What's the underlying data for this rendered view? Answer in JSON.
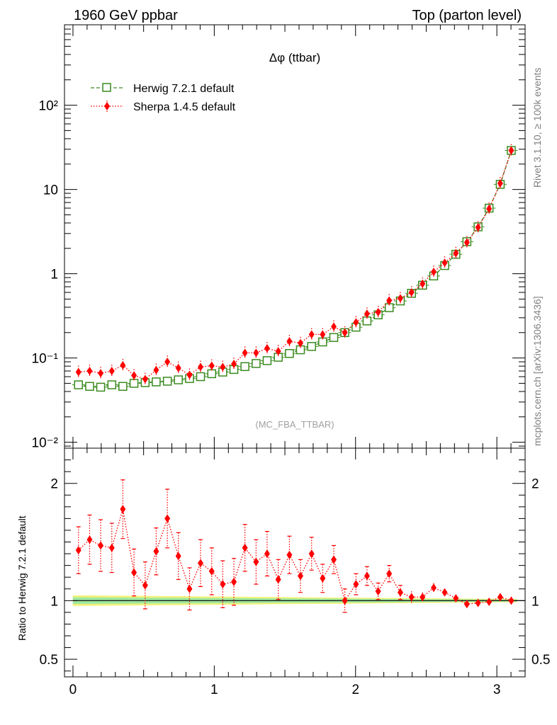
{
  "header": {
    "left_title": "1960 GeV ppbar",
    "right_title": "Top (parton level)"
  },
  "side_labels": {
    "rivet": "Rivet 3.1.10, ≥ 100k events",
    "mcplots": "mcplots.cern.ch [arXiv:1306.3436]"
  },
  "plot_title": "Δφ (ttbar)",
  "watermark": "(MC_FBA_TTBAR)",
  "ratio_ylabel": "Ratio to Herwig 7.2.1 default",
  "legend": [
    {
      "label": "Herwig 7.2.1 default",
      "color": "#3a8a1e"
    },
    {
      "label": "Sherpa 1.4.5 default",
      "color": "#ff0000"
    }
  ],
  "colors": {
    "herwig": "#3a8a1e",
    "sherpa": "#ff0000",
    "band_outer": "#f2f27a",
    "band_inner": "#9fe8a0"
  },
  "chart_data": [
    {
      "type": "scatter",
      "panel": "main",
      "yscale": "log",
      "xlim": [
        -0.06,
        3.2
      ],
      "ylim": [
        0.0085,
        900
      ],
      "ytick_labels": [
        "10⁻²",
        "10⁻¹",
        "1",
        "10",
        "10²"
      ],
      "x": [
        0.039,
        0.118,
        0.196,
        0.275,
        0.353,
        0.432,
        0.511,
        0.589,
        0.668,
        0.746,
        0.825,
        0.903,
        0.982,
        1.06,
        1.139,
        1.217,
        1.296,
        1.374,
        1.453,
        1.532,
        1.61,
        1.689,
        1.767,
        1.846,
        1.924,
        2.003,
        2.081,
        2.16,
        2.238,
        2.317,
        2.396,
        2.474,
        2.553,
        2.631,
        2.71,
        2.788,
        2.867,
        2.945,
        3.024,
        3.102
      ],
      "series": [
        {
          "name": "Herwig 7.2.1 default",
          "values": [
            0.048,
            0.046,
            0.045,
            0.048,
            0.046,
            0.05,
            0.051,
            0.052,
            0.053,
            0.055,
            0.057,
            0.06,
            0.065,
            0.068,
            0.073,
            0.079,
            0.086,
            0.093,
            0.102,
            0.113,
            0.125,
            0.137,
            0.155,
            0.175,
            0.2,
            0.232,
            0.275,
            0.325,
            0.395,
            0.475,
            0.585,
            0.73,
            0.94,
            1.25,
            1.7,
            2.4,
            3.6,
            6.0,
            11.5,
            29.0
          ]
        },
        {
          "name": "Sherpa 1.4.5 default",
          "values": [
            0.068,
            0.07,
            0.066,
            0.07,
            0.082,
            0.062,
            0.056,
            0.072,
            0.09,
            0.076,
            0.063,
            0.078,
            0.081,
            0.078,
            0.085,
            0.115,
            0.115,
            0.13,
            0.12,
            0.158,
            0.15,
            0.19,
            0.19,
            0.235,
            0.2,
            0.265,
            0.335,
            0.35,
            0.48,
            0.51,
            0.6,
            0.76,
            1.05,
            1.35,
            1.75,
            2.35,
            3.55,
            5.9,
            11.8,
            29.0
          ]
        }
      ]
    },
    {
      "type": "scatter",
      "panel": "ratio",
      "xlim": [
        -0.06,
        3.2
      ],
      "ylim": [
        0.35,
        2.3
      ],
      "xticks": [
        0,
        1,
        2,
        3
      ],
      "yticks": [
        0.5,
        1,
        2
      ],
      "ylabel": "Ratio to Herwig 7.2.1 default",
      "reference_line": 1,
      "x": [
        0.039,
        0.118,
        0.196,
        0.275,
        0.353,
        0.432,
        0.511,
        0.589,
        0.668,
        0.746,
        0.825,
        0.903,
        0.982,
        1.06,
        1.139,
        1.217,
        1.296,
        1.374,
        1.453,
        1.532,
        1.61,
        1.689,
        1.767,
        1.846,
        1.924,
        2.003,
        2.081,
        2.16,
        2.238,
        2.317,
        2.396,
        2.474,
        2.553,
        2.631,
        2.71,
        2.788,
        2.867,
        2.945,
        3.024,
        3.102
      ],
      "series": [
        {
          "name": "Sherpa 1.4.5 default",
          "values": [
            1.43,
            1.52,
            1.47,
            1.45,
            1.78,
            1.24,
            1.13,
            1.42,
            1.7,
            1.38,
            1.1,
            1.32,
            1.25,
            1.14,
            1.16,
            1.45,
            1.33,
            1.4,
            1.18,
            1.39,
            1.21,
            1.4,
            1.19,
            1.35,
            1.0,
            1.14,
            1.21,
            1.08,
            1.23,
            1.07,
            1.03,
            1.03,
            1.11,
            1.07,
            1.02,
            0.97,
            0.98,
            0.99,
            1.03,
            1.0
          ],
          "err": [
            0.2,
            0.21,
            0.22,
            0.21,
            0.25,
            0.2,
            0.2,
            0.2,
            0.25,
            0.2,
            0.18,
            0.2,
            0.2,
            0.2,
            0.2,
            0.2,
            0.19,
            0.19,
            0.17,
            0.16,
            0.14,
            0.14,
            0.12,
            0.12,
            0.1,
            0.09,
            0.08,
            0.07,
            0.07,
            0.06,
            0.05,
            0.04,
            0.04,
            0.03,
            0.03,
            0.03,
            0.02,
            0.02,
            0.02,
            0.02
          ]
        }
      ]
    }
  ]
}
